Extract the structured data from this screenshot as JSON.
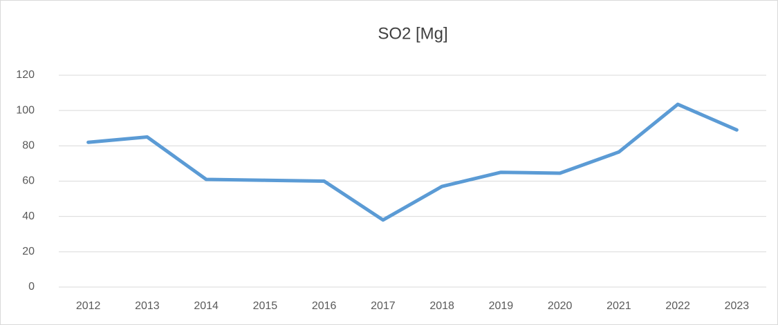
{
  "chart_data": {
    "type": "line",
    "title": "SO2 [Mg]",
    "categories": [
      "2012",
      "2013",
      "2014",
      "2015",
      "2016",
      "2017",
      "2018",
      "2019",
      "2020",
      "2021",
      "2022",
      "2023"
    ],
    "values": [
      82,
      85,
      61,
      60.5,
      60,
      38,
      57,
      65,
      64.5,
      76.5,
      103.5,
      89
    ],
    "color": "#5b9bd5",
    "ylim": [
      0,
      120
    ],
    "yticks": [
      0,
      20,
      40,
      60,
      80,
      100,
      120
    ],
    "grid": true
  }
}
